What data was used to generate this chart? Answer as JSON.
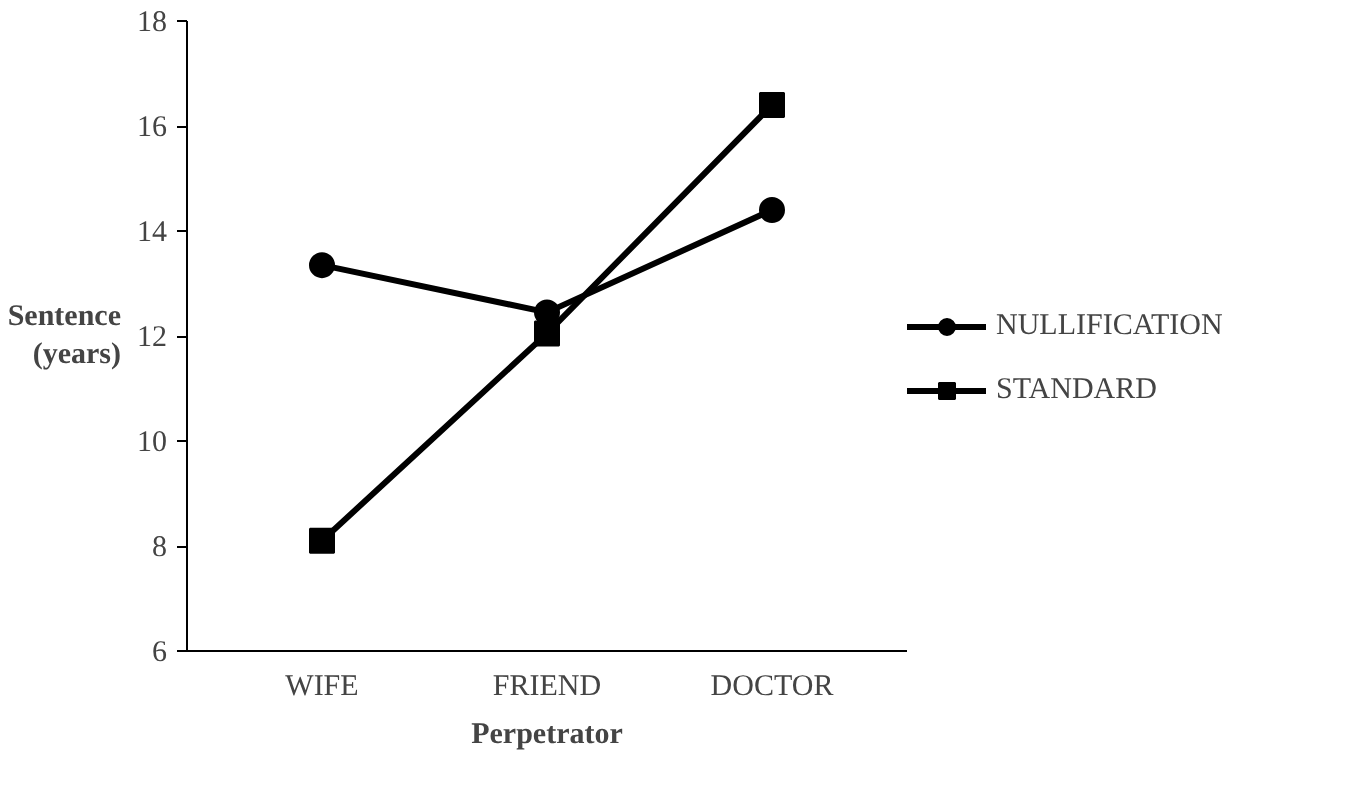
{
  "chart_data": {
    "type": "line",
    "xlabel": "Perpetrator",
    "ylabel": "Sentence\n(years)",
    "categories": [
      "WIFE",
      "FRIEND",
      "DOCTOR"
    ],
    "series": [
      {
        "name": "NULLIFICATION",
        "color": "#000000",
        "marker": "circle",
        "values": [
          13.35,
          12.45,
          14.4
        ]
      },
      {
        "name": "STANDARD",
        "color": "#000000",
        "marker": "square",
        "values": [
          8.1,
          12.05,
          16.4
        ]
      }
    ],
    "ylim": [
      6,
      18
    ],
    "yticks": [
      6,
      8,
      10,
      12,
      14,
      16,
      18
    ],
    "grid": false,
    "legend": "right",
    "line_style": "solid"
  }
}
